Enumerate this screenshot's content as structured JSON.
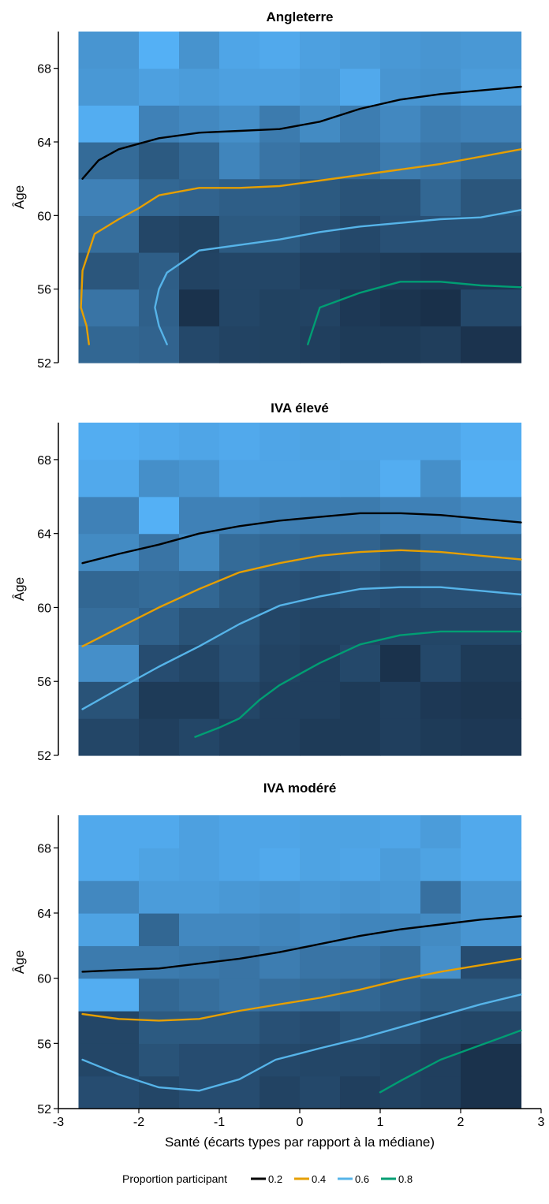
{
  "legend": {
    "title": "Proportion participant",
    "items": [
      {
        "label": "0.2",
        "color": "#000000"
      },
      {
        "label": "0.4",
        "color": "#E69F00"
      },
      {
        "label": "0.6",
        "color": "#56B4E9"
      },
      {
        "label": "0.8",
        "color": "#009E73"
      }
    ]
  },
  "xlabel": "Santé (écarts types par rapport à la médiane)",
  "ylabel": "Âge",
  "xlim": [
    -3,
    3
  ],
  "ylim": [
    52,
    70
  ],
  "xticks": [
    "-3",
    "-2",
    "-1",
    "0",
    "1",
    "2",
    "3"
  ],
  "yticks": [
    "52",
    "56",
    "60",
    "64",
    "68"
  ],
  "heat_colors": {
    "low": "#172B43",
    "high": "#54B0F5"
  },
  "chart_data": [
    {
      "type": "line",
      "title": "Angleterre",
      "heatmap": {
        "x_edges": [
          -2.75,
          -2,
          -1.5,
          -1,
          -0.5,
          0,
          0.5,
          1,
          1.5,
          2,
          2.75
        ],
        "y_edges": [
          52,
          54,
          56,
          58,
          60,
          62,
          64,
          66,
          68,
          70
        ],
        "values": [
          [
            0.45,
            0.42,
            0.22,
            0.18,
            0.17,
            0.15,
            0.12,
            0.12,
            0.14,
            0.06
          ],
          [
            0.55,
            0.4,
            0.05,
            0.2,
            0.17,
            0.18,
            0.1,
            0.07,
            0.04,
            0.22
          ],
          [
            0.32,
            0.38,
            0.18,
            0.2,
            0.2,
            0.15,
            0.14,
            0.12,
            0.1,
            0.1
          ],
          [
            0.5,
            0.2,
            0.17,
            0.35,
            0.35,
            0.28,
            0.22,
            0.28,
            0.28,
            0.28
          ],
          [
            0.65,
            0.45,
            0.42,
            0.38,
            0.38,
            0.35,
            0.3,
            0.3,
            0.45,
            0.32
          ],
          [
            0.48,
            0.35,
            0.45,
            0.68,
            0.55,
            0.5,
            0.5,
            0.6,
            0.55,
            0.48
          ],
          [
            0.98,
            0.65,
            0.7,
            0.75,
            0.6,
            0.72,
            0.62,
            0.7,
            0.62,
            0.65
          ],
          [
            0.82,
            0.88,
            0.85,
            0.88,
            0.88,
            0.85,
            0.95,
            0.8,
            0.78,
            0.85
          ],
          [
            0.8,
            1.0,
            0.78,
            0.92,
            0.95,
            0.88,
            0.85,
            0.82,
            0.8,
            0.82
          ]
        ]
      },
      "series": [
        {
          "name": "0.2",
          "x": [
            -2.7,
            -2.5,
            -2.25,
            -2,
            -1.75,
            -1.25,
            -0.75,
            -0.25,
            0.25,
            0.75,
            1.25,
            1.75,
            2.25,
            2.75
          ],
          "y": [
            62.0,
            63.0,
            63.6,
            63.9,
            64.2,
            64.5,
            64.6,
            64.7,
            65.1,
            65.8,
            66.3,
            66.6,
            66.8,
            67.0
          ]
        },
        {
          "name": "0.4",
          "x": [
            -2.62,
            -2.65,
            -2.72,
            -2.7,
            -2.55,
            -2.25,
            -2,
            -1.75,
            -1.25,
            -0.75,
            -0.25,
            0.25,
            0.75,
            1.25,
            1.75,
            2.25,
            2.75
          ],
          "y": [
            53.0,
            54.0,
            55.0,
            57.0,
            59.0,
            59.8,
            60.4,
            61.1,
            61.5,
            61.5,
            61.6,
            61.9,
            62.2,
            62.5,
            62.8,
            63.2,
            63.6
          ]
        },
        {
          "name": "0.6",
          "x": [
            -1.65,
            -1.75,
            -1.8,
            -1.75,
            -1.65,
            -1.25,
            -0.75,
            -0.25,
            0.25,
            0.75,
            1.25,
            1.75,
            2.25,
            2.75
          ],
          "y": [
            53.0,
            54.0,
            55.0,
            56.0,
            56.9,
            58.1,
            58.4,
            58.7,
            59.1,
            59.4,
            59.6,
            59.8,
            59.9,
            60.3
          ]
        },
        {
          "name": "0.8",
          "x": [
            0.1,
            0.25,
            0.75,
            1.25,
            1.75,
            2.25,
            2.75
          ],
          "y": [
            53.0,
            55.0,
            55.8,
            56.4,
            56.4,
            56.2,
            56.1
          ]
        }
      ]
    },
    {
      "type": "line",
      "title": "IVA élevé",
      "heatmap": {
        "x_edges": [
          -2.75,
          -2,
          -1.5,
          -1,
          -0.5,
          0,
          0.5,
          1,
          1.5,
          2,
          2.75
        ],
        "y_edges": [
          52,
          54,
          56,
          58,
          60,
          62,
          64,
          66,
          68,
          70
        ],
        "values": [
          [
            0.2,
            0.15,
            0.2,
            0.15,
            0.15,
            0.12,
            0.12,
            0.15,
            0.12,
            0.1
          ],
          [
            0.3,
            0.12,
            0.12,
            0.2,
            0.15,
            0.15,
            0.12,
            0.15,
            0.1,
            0.08
          ],
          [
            0.75,
            0.25,
            0.2,
            0.28,
            0.18,
            0.15,
            0.22,
            0.05,
            0.22,
            0.12
          ],
          [
            0.5,
            0.4,
            0.3,
            0.3,
            0.2,
            0.18,
            0.18,
            0.2,
            0.2,
            0.2
          ],
          [
            0.45,
            0.48,
            0.45,
            0.35,
            0.28,
            0.25,
            0.28,
            0.25,
            0.28,
            0.28
          ],
          [
            0.72,
            0.55,
            0.72,
            0.48,
            0.45,
            0.42,
            0.42,
            0.35,
            0.45,
            0.45
          ],
          [
            0.65,
            1.0,
            0.65,
            0.65,
            0.62,
            0.6,
            0.6,
            0.65,
            0.65,
            0.7
          ],
          [
            0.95,
            0.75,
            0.8,
            0.92,
            0.92,
            0.92,
            0.9,
            0.98,
            0.75,
            1.0
          ],
          [
            0.98,
            0.95,
            0.92,
            0.95,
            0.92,
            0.9,
            0.92,
            0.92,
            0.92,
            0.98
          ]
        ]
      },
      "series": [
        {
          "name": "0.2",
          "x": [
            -2.7,
            -2.25,
            -1.75,
            -1.25,
            -0.75,
            -0.25,
            0.25,
            0.75,
            1.25,
            1.75,
            2.25,
            2.75
          ],
          "y": [
            62.4,
            62.9,
            63.4,
            64.0,
            64.4,
            64.7,
            64.9,
            65.1,
            65.1,
            65.0,
            64.8,
            64.6
          ]
        },
        {
          "name": "0.4",
          "x": [
            -2.7,
            -2.25,
            -1.75,
            -1.25,
            -0.75,
            -0.25,
            0.25,
            0.75,
            1.25,
            1.75,
            2.25,
            2.75
          ],
          "y": [
            57.9,
            58.9,
            60.0,
            61.0,
            61.9,
            62.4,
            62.8,
            63.0,
            63.1,
            63.0,
            62.8,
            62.6
          ]
        },
        {
          "name": "0.6",
          "x": [
            -2.7,
            -2.25,
            -1.75,
            -1.25,
            -0.75,
            -0.25,
            0.25,
            0.75,
            1.25,
            1.75,
            2.25,
            2.75
          ],
          "y": [
            54.5,
            55.6,
            56.8,
            57.9,
            59.1,
            60.1,
            60.6,
            61.0,
            61.1,
            61.1,
            60.9,
            60.7
          ]
        },
        {
          "name": "0.8",
          "x": [
            -1.3,
            -1.0,
            -0.75,
            -0.5,
            -0.25,
            0.25,
            0.75,
            1.25,
            1.75,
            2.25,
            2.75
          ],
          "y": [
            53.0,
            53.5,
            54.0,
            55.0,
            55.8,
            57.0,
            58.0,
            58.5,
            58.7,
            58.7,
            58.7
          ]
        }
      ]
    },
    {
      "type": "line",
      "title": "IVA modéré",
      "heatmap": {
        "x_edges": [
          -2.75,
          -2,
          -1.5,
          -1,
          -0.5,
          0,
          0.5,
          1,
          1.5,
          2,
          2.75
        ],
        "y_edges": [
          52,
          54,
          56,
          58,
          60,
          62,
          64,
          66,
          68,
          70
        ],
        "values": [
          [
            0.25,
            0.2,
            0.25,
            0.25,
            0.18,
            0.22,
            0.15,
            0.18,
            0.15,
            0.05
          ],
          [
            0.2,
            0.3,
            0.25,
            0.25,
            0.22,
            0.2,
            0.2,
            0.18,
            0.15,
            0.05
          ],
          [
            0.2,
            0.35,
            0.35,
            0.35,
            0.28,
            0.25,
            0.3,
            0.3,
            0.22,
            0.2
          ],
          [
            0.98,
            0.45,
            0.5,
            0.55,
            0.5,
            0.48,
            0.45,
            0.4,
            0.35,
            0.35
          ],
          [
            0.6,
            0.6,
            0.58,
            0.55,
            0.62,
            0.55,
            0.55,
            0.5,
            0.75,
            0.25
          ],
          [
            0.9,
            0.45,
            0.7,
            0.7,
            0.68,
            0.7,
            0.68,
            0.68,
            0.72,
            0.8
          ],
          [
            0.7,
            0.85,
            0.85,
            0.82,
            0.8,
            0.82,
            0.8,
            0.82,
            0.52,
            0.8
          ],
          [
            0.95,
            0.9,
            0.88,
            0.92,
            0.95,
            0.9,
            0.92,
            0.85,
            0.9,
            0.95
          ],
          [
            0.95,
            0.95,
            0.88,
            0.92,
            0.92,
            0.9,
            0.9,
            0.92,
            0.85,
            0.95
          ]
        ]
      },
      "series": [
        {
          "name": "0.2",
          "x": [
            -2.7,
            -2.25,
            -1.75,
            -1.25,
            -0.75,
            -0.25,
            0.25,
            0.75,
            1.25,
            1.75,
            2.25,
            2.75
          ],
          "y": [
            60.4,
            60.5,
            60.6,
            60.9,
            61.2,
            61.6,
            62.1,
            62.6,
            63.0,
            63.3,
            63.6,
            63.8
          ]
        },
        {
          "name": "0.4",
          "x": [
            -2.7,
            -2.25,
            -1.75,
            -1.25,
            -0.75,
            -0.25,
            0.25,
            0.75,
            1.25,
            1.75,
            2.25,
            2.75
          ],
          "y": [
            57.8,
            57.5,
            57.4,
            57.5,
            58.0,
            58.4,
            58.8,
            59.3,
            59.9,
            60.4,
            60.8,
            61.2
          ]
        },
        {
          "name": "0.6",
          "x": [
            -2.7,
            -2.25,
            -1.75,
            -1.25,
            -0.75,
            -0.3,
            0.25,
            0.75,
            1.25,
            1.75,
            2.25,
            2.75
          ],
          "y": [
            55.0,
            54.1,
            53.3,
            53.1,
            53.8,
            55.0,
            55.7,
            56.3,
            57.0,
            57.7,
            58.4,
            59.0
          ]
        },
        {
          "name": "0.8",
          "x": [
            1.0,
            1.25,
            1.75,
            2.25,
            2.75
          ],
          "y": [
            53.0,
            53.7,
            55.0,
            55.9,
            56.8
          ]
        }
      ]
    }
  ]
}
